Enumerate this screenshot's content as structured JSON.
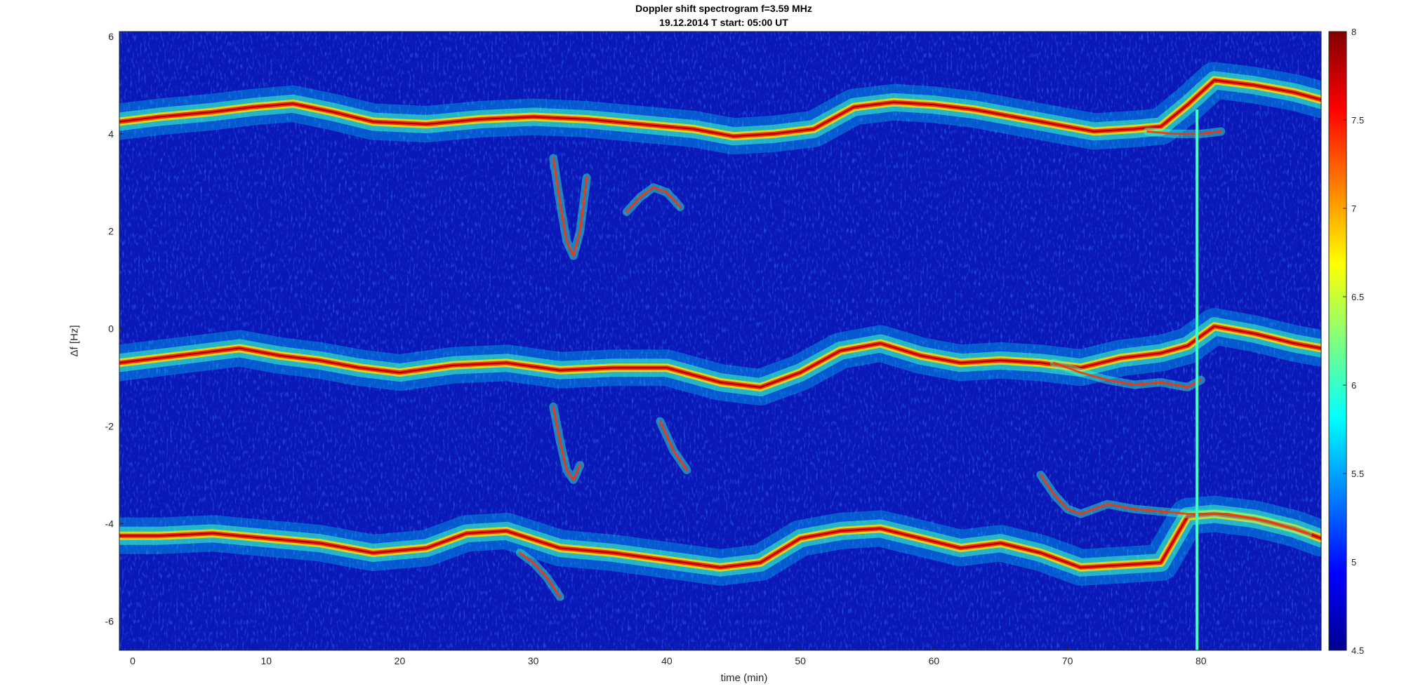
{
  "chart_data": {
    "type": "heatmap",
    "title": "Doppler shift spectrogram f=3.59 MHz",
    "subtitle": "19.12.2014   T start: 05:00 UT",
    "xlabel": "time (min)",
    "ylabel": "Δf [Hz]",
    "xlim": [
      -1,
      89
    ],
    "ylim": [
      -6.6,
      6.1
    ],
    "xticks": [
      0,
      10,
      20,
      30,
      40,
      50,
      60,
      70,
      80
    ],
    "yticks": [
      6,
      4,
      2,
      0,
      -2,
      -4,
      -6
    ],
    "colorbar": {
      "colormap": "jet",
      "range": [
        4.5,
        8
      ],
      "ticks": [
        8,
        7.5,
        7,
        6.5,
        6,
        5.5,
        5,
        4.5
      ]
    },
    "traces": [
      {
        "name": "upper",
        "x": [
          -1,
          2,
          6,
          9,
          12,
          15,
          18,
          22,
          26,
          30,
          34,
          38,
          42,
          45,
          48,
          51,
          54,
          57,
          60,
          63,
          66,
          69,
          72,
          75,
          77,
          79,
          81,
          84,
          87,
          89
        ],
        "y": [
          4.25,
          4.35,
          4.45,
          4.55,
          4.62,
          4.45,
          4.25,
          4.2,
          4.3,
          4.35,
          4.3,
          4.2,
          4.1,
          3.95,
          4.0,
          4.1,
          4.55,
          4.65,
          4.6,
          4.5,
          4.35,
          4.2,
          4.05,
          4.1,
          4.15,
          4.6,
          5.1,
          5.0,
          4.85,
          4.7
        ]
      },
      {
        "name": "middle",
        "x": [
          -1,
          2,
          5,
          8,
          11,
          14,
          17,
          20,
          24,
          28,
          32,
          36,
          40,
          44,
          47,
          50,
          53,
          56,
          59,
          62,
          65,
          68,
          71,
          74,
          77,
          79,
          81,
          84,
          87,
          89
        ],
        "y": [
          -0.7,
          -0.6,
          -0.5,
          -0.4,
          -0.55,
          -0.65,
          -0.8,
          -0.9,
          -0.75,
          -0.7,
          -0.85,
          -0.8,
          -0.8,
          -1.1,
          -1.2,
          -0.9,
          -0.45,
          -0.3,
          -0.55,
          -0.7,
          -0.65,
          -0.7,
          -0.8,
          -0.6,
          -0.5,
          -0.35,
          0.05,
          -0.1,
          -0.3,
          -0.4
        ]
      },
      {
        "name": "lower",
        "x": [
          -1,
          2,
          6,
          10,
          14,
          18,
          22,
          25,
          28,
          32,
          36,
          40,
          44,
          47,
          50,
          53,
          56,
          59,
          62,
          65,
          68,
          71,
          74,
          77,
          79,
          81,
          84,
          87,
          89
        ],
        "y": [
          -4.25,
          -4.25,
          -4.2,
          -4.3,
          -4.4,
          -4.6,
          -4.5,
          -4.2,
          -4.15,
          -4.5,
          -4.6,
          -4.75,
          -4.9,
          -4.8,
          -4.3,
          -4.15,
          -4.1,
          -4.3,
          -4.5,
          -4.4,
          -4.6,
          -4.9,
          -4.85,
          -4.8,
          -3.85,
          -3.8,
          -3.9,
          -4.1,
          -4.3
        ]
      }
    ],
    "side_traces": [
      {
        "name": "upper-split",
        "x": [
          76,
          78,
          80,
          81.5
        ],
        "y": [
          4.05,
          4.0,
          4.0,
          4.05
        ]
      },
      {
        "name": "middle-split",
        "x": [
          69,
          71,
          73,
          75,
          77,
          79,
          80
        ],
        "y": [
          -0.7,
          -0.9,
          -1.05,
          -1.15,
          -1.1,
          -1.2,
          -1.05
        ]
      },
      {
        "name": "lower-split",
        "x": [
          68,
          69,
          70,
          71,
          73,
          75,
          77,
          79,
          82,
          85,
          88
        ],
        "y": [
          -3.0,
          -3.4,
          -3.7,
          -3.8,
          -3.6,
          -3.7,
          -3.75,
          -3.8,
          -3.8,
          -3.95,
          -4.2
        ]
      },
      {
        "name": "drift-1",
        "x": [
          31.5,
          32.0,
          32.5,
          33.0,
          33.5,
          34.0
        ],
        "y": [
          3.5,
          2.6,
          1.8,
          1.5,
          2.0,
          3.1
        ]
      },
      {
        "name": "drift-2",
        "x": [
          37.0,
          38.0,
          39.0,
          40.0,
          41.0
        ],
        "y": [
          2.4,
          2.7,
          2.9,
          2.8,
          2.5
        ]
      },
      {
        "name": "drift-3",
        "x": [
          31.5,
          32.0,
          32.5,
          33.0,
          33.5
        ],
        "y": [
          -1.6,
          -2.3,
          -2.9,
          -3.1,
          -2.8
        ]
      },
      {
        "name": "drift-4",
        "x": [
          39.5,
          40.0,
          40.5,
          41.0,
          41.5
        ],
        "y": [
          -1.9,
          -2.2,
          -2.5,
          -2.7,
          -2.9
        ]
      },
      {
        "name": "drift-5",
        "x": [
          29.0,
          30.0,
          31.0,
          32.0
        ],
        "y": [
          -4.6,
          -4.8,
          -5.1,
          -5.5
        ]
      }
    ],
    "vertical_streak_x": 79.7
  }
}
